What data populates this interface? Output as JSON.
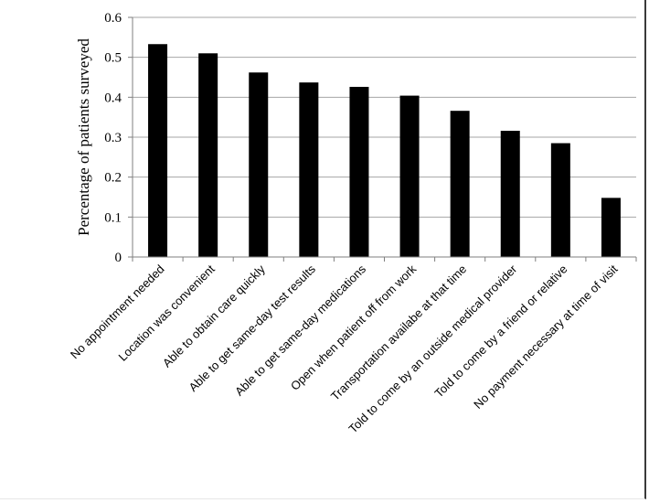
{
  "chart_data": {
    "type": "bar",
    "title": "",
    "xlabel": "",
    "ylabel": "Percentage of patients surveyed",
    "ylim": [
      0,
      0.6
    ],
    "yticks": [
      "0",
      "0.1",
      "0.2",
      "0.3",
      "0.4",
      "0.5",
      "0.6"
    ],
    "grid": true,
    "legend": "none",
    "bar_color": "#000000",
    "grid_color": "#a6a6a6",
    "categories": [
      "No appointment needed",
      "Location was convenient",
      "Able to obtain care quickly",
      "Able to get same-day test results",
      "Able to get same-day medications",
      "Open when patient off from work",
      "Transportation availabe at that time",
      "Told to come by an outside medical provider",
      "Told to come by a friend or relative",
      "No payment necessary at time of visit"
    ],
    "values": [
      0.533,
      0.51,
      0.462,
      0.437,
      0.426,
      0.404,
      0.366,
      0.316,
      0.285,
      0.148
    ]
  }
}
